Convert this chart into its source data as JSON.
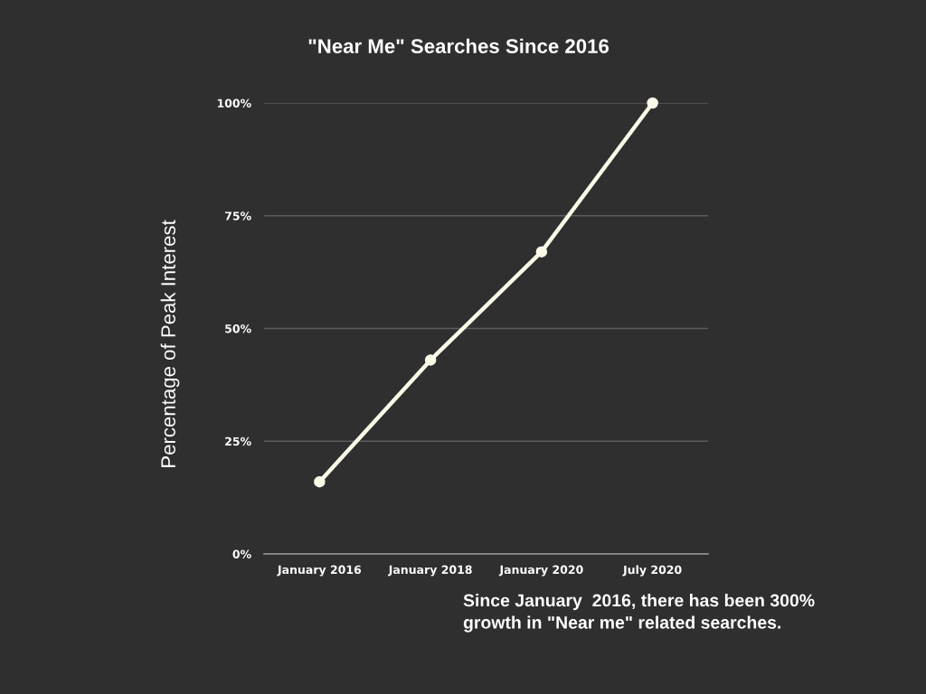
{
  "chart_data": {
    "type": "line",
    "title": "\"Near Me\" Searches Since 2016",
    "ylabel": "Percentage of Peak Interest",
    "categories": [
      "January 2016",
      "January 2018",
      "January 2020",
      "July 2020"
    ],
    "series": [
      {
        "color": "#fbf9e8",
        "values": [
          16,
          43,
          67,
          100
        ]
      }
    ],
    "ylim": [
      0,
      100
    ],
    "yticks": [
      {
        "value": 0,
        "label": "0%"
      },
      {
        "value": 25,
        "label": "25%"
      },
      {
        "value": 50,
        "label": "50%"
      },
      {
        "value": 75,
        "label": "75%"
      },
      {
        "value": 100,
        "label": "100%"
      }
    ],
    "grid": "y",
    "marker": "circle",
    "line_style": "solid",
    "annotations": [
      "Since January  2016, there has been 300%\ngrowth in \"Near me\" related searches."
    ]
  }
}
